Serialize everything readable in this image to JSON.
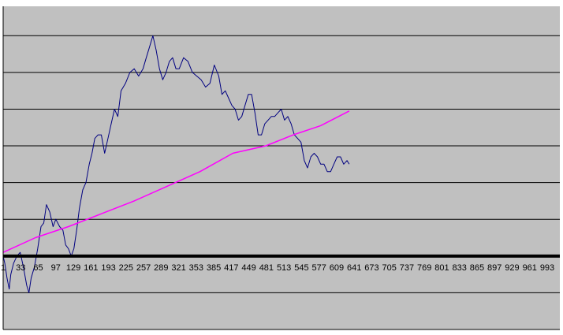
{
  "chart_data": {
    "type": "line",
    "title": "",
    "xlabel": "",
    "ylabel": "",
    "grid": true,
    "legend": "none",
    "plot_background": "#c0c0c0",
    "page_background": "#ffffff",
    "zero_line_color": "#000000",
    "x_tick_labels": [
      1,
      33,
      65,
      97,
      129,
      161,
      193,
      225,
      257,
      289,
      321,
      353,
      385,
      417,
      449,
      481,
      513,
      545,
      577,
      609,
      641,
      673,
      705,
      737,
      769,
      801,
      833,
      865,
      897,
      929,
      961,
      993
    ],
    "xlim": [
      1,
      1016
    ],
    "ylim": [
      -2,
      6.8
    ],
    "series": [
      {
        "color": "#000080",
        "points": [
          [
            1,
            0
          ],
          [
            4,
            -0.2
          ],
          [
            8,
            -0.6
          ],
          [
            12,
            -0.9
          ],
          [
            15,
            -0.5
          ],
          [
            20,
            -0.2
          ],
          [
            26,
            0
          ],
          [
            32,
            0.1
          ],
          [
            38,
            -0.3
          ],
          [
            44,
            -0.8
          ],
          [
            48,
            -1
          ],
          [
            52,
            -0.6
          ],
          [
            58,
            -0.3
          ],
          [
            64,
            0.2
          ],
          [
            70,
            0.8
          ],
          [
            75,
            0.9
          ],
          [
            80,
            1.4
          ],
          [
            86,
            1.2
          ],
          [
            92,
            0.8
          ],
          [
            97,
            1
          ],
          [
            104,
            0.8
          ],
          [
            110,
            0.7
          ],
          [
            115,
            0.3
          ],
          [
            120,
            0.2
          ],
          [
            125,
            0
          ],
          [
            130,
            0.2
          ],
          [
            135,
            0.7
          ],
          [
            140,
            1.3
          ],
          [
            146,
            1.8
          ],
          [
            152,
            2
          ],
          [
            158,
            2.5
          ],
          [
            163,
            2.8
          ],
          [
            168,
            3.2
          ],
          [
            174,
            3.3
          ],
          [
            180,
            3.3
          ],
          [
            186,
            2.8
          ],
          [
            192,
            3.2
          ],
          [
            198,
            3.6
          ],
          [
            204,
            4.0
          ],
          [
            210,
            3.8
          ],
          [
            216,
            4.5
          ],
          [
            224,
            4.7
          ],
          [
            232,
            5.0
          ],
          [
            240,
            5.1
          ],
          [
            248,
            4.9
          ],
          [
            256,
            5.1
          ],
          [
            262,
            5.4
          ],
          [
            268,
            5.7
          ],
          [
            274,
            6.0
          ],
          [
            280,
            5.6
          ],
          [
            286,
            5.1
          ],
          [
            292,
            4.8
          ],
          [
            298,
            5.0
          ],
          [
            304,
            5.3
          ],
          [
            310,
            5.4
          ],
          [
            316,
            5.1
          ],
          [
            322,
            5.1
          ],
          [
            330,
            5.4
          ],
          [
            338,
            5.3
          ],
          [
            346,
            5.0
          ],
          [
            354,
            4.9
          ],
          [
            362,
            4.8
          ],
          [
            370,
            4.6
          ],
          [
            378,
            4.7
          ],
          [
            386,
            5.2
          ],
          [
            394,
            4.9
          ],
          [
            400,
            4.4
          ],
          [
            406,
            4.5
          ],
          [
            412,
            4.3
          ],
          [
            418,
            4.1
          ],
          [
            424,
            4.0
          ],
          [
            430,
            3.7
          ],
          [
            436,
            3.8
          ],
          [
            442,
            4.1
          ],
          [
            448,
            4.4
          ],
          [
            454,
            4.4
          ],
          [
            460,
            3.9
          ],
          [
            466,
            3.3
          ],
          [
            472,
            3.3
          ],
          [
            478,
            3.6
          ],
          [
            484,
            3.7
          ],
          [
            490,
            3.8
          ],
          [
            496,
            3.8
          ],
          [
            502,
            3.9
          ],
          [
            508,
            4.0
          ],
          [
            514,
            3.7
          ],
          [
            520,
            3.8
          ],
          [
            526,
            3.6
          ],
          [
            532,
            3.3
          ],
          [
            538,
            3.2
          ],
          [
            544,
            3.1
          ],
          [
            550,
            2.6
          ],
          [
            556,
            2.4
          ],
          [
            562,
            2.7
          ],
          [
            568,
            2.8
          ],
          [
            574,
            2.7
          ],
          [
            580,
            2.5
          ],
          [
            586,
            2.5
          ],
          [
            592,
            2.3
          ],
          [
            598,
            2.3
          ],
          [
            604,
            2.5
          ],
          [
            610,
            2.7
          ],
          [
            616,
            2.7
          ],
          [
            622,
            2.5
          ],
          [
            628,
            2.6
          ],
          [
            632,
            2.5
          ]
        ]
      },
      {
        "color": "#ff00ff",
        "points": [
          [
            1,
            0.1
          ],
          [
            60,
            0.5
          ],
          [
            120,
            0.8
          ],
          [
            180,
            1.15
          ],
          [
            240,
            1.5
          ],
          [
            300,
            1.9
          ],
          [
            360,
            2.3
          ],
          [
            420,
            2.8
          ],
          [
            480,
            3.0
          ],
          [
            530,
            3.3
          ],
          [
            580,
            3.55
          ],
          [
            632,
            3.95
          ]
        ]
      }
    ]
  }
}
